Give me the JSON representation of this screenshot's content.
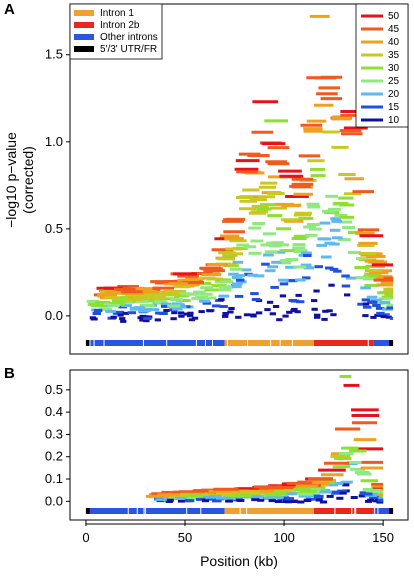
{
  "panels": [
    {
      "letter": "A",
      "ylabel_line1": "−log10 p−value",
      "ylabel_line2": "(corrected)",
      "yticks": [
        "0.0",
        "0.5",
        "1.0",
        "1.5"
      ]
    },
    {
      "letter": "B",
      "yticks": [
        "0.0",
        "0.1",
        "0.2",
        "0.3",
        "0.4",
        "0.5"
      ]
    }
  ],
  "xlabel": "Position (kb)",
  "xticks": [
    "0",
    "50",
    "100",
    "150"
  ],
  "region_legend": [
    {
      "label": "Intron 1",
      "color": "#f0a030"
    },
    {
      "label": "Intron 2b",
      "color": "#e8281c"
    },
    {
      "label": "Other introns",
      "color": "#2a55e0"
    },
    {
      "label": "5'/3' UTR/FR",
      "color": "#000000"
    }
  ],
  "window_legend": [
    {
      "label": "50",
      "color": "#e8101a"
    },
    {
      "label": "45",
      "color": "#f05a1e"
    },
    {
      "label": "40",
      "color": "#f0a020"
    },
    {
      "label": "35",
      "color": "#c8c820"
    },
    {
      "label": "30",
      "color": "#8ce030"
    },
    {
      "label": "25",
      "color": "#90e880"
    },
    {
      "label": "20",
      "color": "#60b8f0"
    },
    {
      "label": "15",
      "color": "#2050e0"
    },
    {
      "label": "10",
      "color": "#1010a0"
    }
  ],
  "chart_data": [
    {
      "type": "scatter",
      "panel": "A",
      "ylabel": "−log10 p−value (corrected)",
      "xlim": [
        -3,
        158
      ],
      "ylim": [
        -0.15,
        1.78
      ],
      "gene_regions": [
        {
          "start": 0,
          "end": 2,
          "region": "5'/3' UTR/FR"
        },
        {
          "start": 2,
          "end": 70,
          "region": "Other introns"
        },
        {
          "start": 70,
          "end": 115,
          "region": "Intron 1"
        },
        {
          "start": 115,
          "end": 145,
          "region": "Intron 2b"
        },
        {
          "start": 145,
          "end": 153,
          "region": "Other introns"
        },
        {
          "start": 153,
          "end": 155,
          "region": "5'/3' UTR/FR"
        }
      ],
      "profile": [
        [
          0,
          0.18
        ],
        [
          20,
          0.2
        ],
        [
          35,
          0.22
        ],
        [
          50,
          0.28
        ],
        [
          60,
          0.35
        ],
        [
          70,
          0.6
        ],
        [
          75,
          0.95
        ],
        [
          80,
          1.0
        ],
        [
          85,
          1.15
        ],
        [
          90,
          1.05
        ],
        [
          95,
          0.95
        ],
        [
          100,
          0.75
        ],
        [
          105,
          0.9
        ],
        [
          110,
          1.35
        ],
        [
          115,
          1.55
        ],
        [
          120,
          1.5
        ],
        [
          125,
          1.4
        ],
        [
          130,
          1.15
        ],
        [
          135,
          0.75
        ],
        [
          140,
          0.45
        ],
        [
          145,
          0.3
        ],
        [
          150,
          0.25
        ],
        [
          155,
          0.2
        ]
      ],
      "segments": [
        {
          "x_start": 113,
          "x_end": 123,
          "y": 1.72,
          "window": "40"
        },
        {
          "x_start": 84,
          "x_end": 97,
          "y": 1.23,
          "window": "50"
        },
        {
          "x_start": 90,
          "x_end": 102,
          "y": 1.12,
          "window": "30"
        },
        {
          "x_start": 138,
          "x_end": 150,
          "y": 0.46,
          "window": "50"
        }
      ]
    },
    {
      "type": "scatter",
      "panel": "B",
      "xlabel": "Position (kb)",
      "xlim": [
        -3,
        158
      ],
      "ylim": [
        -0.03,
        0.58
      ],
      "gene_regions": [
        {
          "start": 0,
          "end": 2,
          "region": "5'/3' UTR/FR"
        },
        {
          "start": 2,
          "end": 70,
          "region": "Other introns"
        },
        {
          "start": 70,
          "end": 115,
          "region": "Intron 1"
        },
        {
          "start": 115,
          "end": 145,
          "region": "Intron 2b"
        },
        {
          "start": 145,
          "end": 153,
          "region": "Other introns"
        },
        {
          "start": 153,
          "end": 155,
          "region": "5'/3' UTR/FR"
        }
      ],
      "profile": [
        [
          30,
          0.04
        ],
        [
          50,
          0.05
        ],
        [
          70,
          0.06
        ],
        [
          90,
          0.07
        ],
        [
          105,
          0.09
        ],
        [
          115,
          0.12
        ],
        [
          120,
          0.18
        ],
        [
          125,
          0.32
        ],
        [
          128,
          0.45
        ],
        [
          130,
          0.55
        ],
        [
          132,
          0.5
        ],
        [
          135,
          0.35
        ],
        [
          140,
          0.15
        ],
        [
          145,
          0.06
        ],
        [
          150,
          0.03
        ]
      ],
      "segments": [
        {
          "x_start": 128,
          "x_end": 134,
          "y": 0.56,
          "window": "30"
        },
        {
          "x_start": 130,
          "x_end": 138,
          "y": 0.52,
          "window": "50"
        }
      ]
    }
  ]
}
